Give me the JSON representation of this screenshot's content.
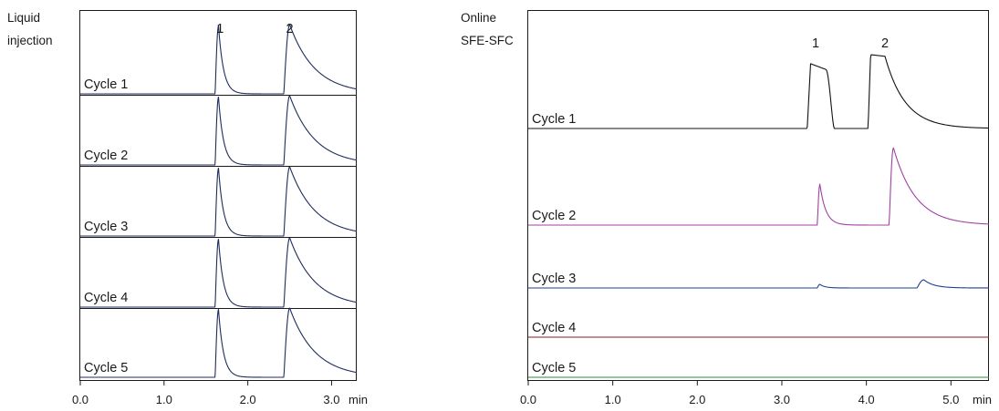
{
  "chart_data": [
    {
      "type": "line",
      "side_label": [
        "Liquid",
        "injection"
      ],
      "x_unit": "min",
      "x_ticks": [
        {
          "value": 0.0,
          "label": "0.0"
        },
        {
          "value": 1.0,
          "label": "1.0"
        },
        {
          "value": 2.0,
          "label": "2.0"
        },
        {
          "value": 3.0,
          "label": "3.0"
        }
      ],
      "xlim": [
        0.0,
        3.3
      ],
      "peak_labels": [
        {
          "text": "1",
          "x": 1.67
        },
        {
          "text": "2",
          "x": 2.5
        }
      ],
      "stacked": true,
      "series": [
        {
          "name": "Cycle 1",
          "color": "#1f2d5c",
          "peaks": [
            {
              "start": 1.61,
              "apex": 1.65,
              "height": 0.98,
              "tail": 0.06
            },
            {
              "start": 2.43,
              "apex": 2.5,
              "height": 1.0,
              "tail": 0.3
            }
          ]
        },
        {
          "name": "Cycle 2",
          "color": "#1f2d5c",
          "peaks": [
            {
              "start": 1.61,
              "apex": 1.65,
              "height": 0.98,
              "tail": 0.06
            },
            {
              "start": 2.43,
              "apex": 2.5,
              "height": 1.0,
              "tail": 0.3
            }
          ]
        },
        {
          "name": "Cycle 3",
          "color": "#1f2d5c",
          "peaks": [
            {
              "start": 1.61,
              "apex": 1.65,
              "height": 0.98,
              "tail": 0.06
            },
            {
              "start": 2.43,
              "apex": 2.5,
              "height": 1.0,
              "tail": 0.3
            }
          ]
        },
        {
          "name": "Cycle 4",
          "color": "#1f2d5c",
          "peaks": [
            {
              "start": 1.61,
              "apex": 1.65,
              "height": 0.98,
              "tail": 0.06
            },
            {
              "start": 2.43,
              "apex": 2.5,
              "height": 1.0,
              "tail": 0.3
            }
          ]
        },
        {
          "name": "Cycle 5",
          "color": "#1f2d5c",
          "peaks": [
            {
              "start": 1.61,
              "apex": 1.65,
              "height": 0.98,
              "tail": 0.06
            },
            {
              "start": 2.43,
              "apex": 2.5,
              "height": 1.0,
              "tail": 0.3
            }
          ]
        }
      ],
      "grid": false
    },
    {
      "type": "line",
      "side_label": [
        "Online",
        "SFE-SFC"
      ],
      "x_unit": "min",
      "x_ticks": [
        {
          "value": 0.0,
          "label": "0.0"
        },
        {
          "value": 1.0,
          "label": "1.0"
        },
        {
          "value": 2.0,
          "label": "2.0"
        },
        {
          "value": 3.0,
          "label": "3.0"
        },
        {
          "value": 4.0,
          "label": "4.0"
        },
        {
          "value": 5.0,
          "label": "5.0"
        }
      ],
      "xlim": [
        0.0,
        5.45
      ],
      "peak_labels": [
        {
          "text": "1",
          "x": 3.4
        },
        {
          "text": "2",
          "x": 4.22
        }
      ],
      "stacked": true,
      "series": [
        {
          "name": "Cycle 1",
          "color": "#111111",
          "peaks": [
            {
              "type": "flat",
              "start": 3.3,
              "rise": 0.04,
              "level": 0.79,
              "end_level": 0.72,
              "end": 3.52,
              "fall": 0.1
            },
            {
              "type": "flat",
              "start": 4.02,
              "rise": 0.03,
              "level": 0.9,
              "end_level": 0.88,
              "end": 4.22,
              "tail": 0.24
            }
          ]
        },
        {
          "name": "Cycle 2",
          "color": "#a040a0",
          "peaks": [
            {
              "start": 3.42,
              "apex": 3.45,
              "height": 0.45,
              "tail": 0.07
            },
            {
              "start": 4.27,
              "apex": 4.32,
              "height": 0.85,
              "tail": 0.26
            }
          ]
        },
        {
          "name": "Cycle 3",
          "color": "#1f3f8f",
          "peaks": [
            {
              "start": 3.42,
              "apex": 3.45,
              "height": 0.04,
              "tail": 0.06
            },
            {
              "start": 4.6,
              "apex": 4.68,
              "height": 0.09,
              "tail": 0.12
            }
          ]
        },
        {
          "name": "Cycle 4",
          "color": "#8a1a2a",
          "peaks": []
        },
        {
          "name": "Cycle 5",
          "color": "#2e8a3e",
          "peaks": []
        }
      ],
      "grid": false
    }
  ]
}
